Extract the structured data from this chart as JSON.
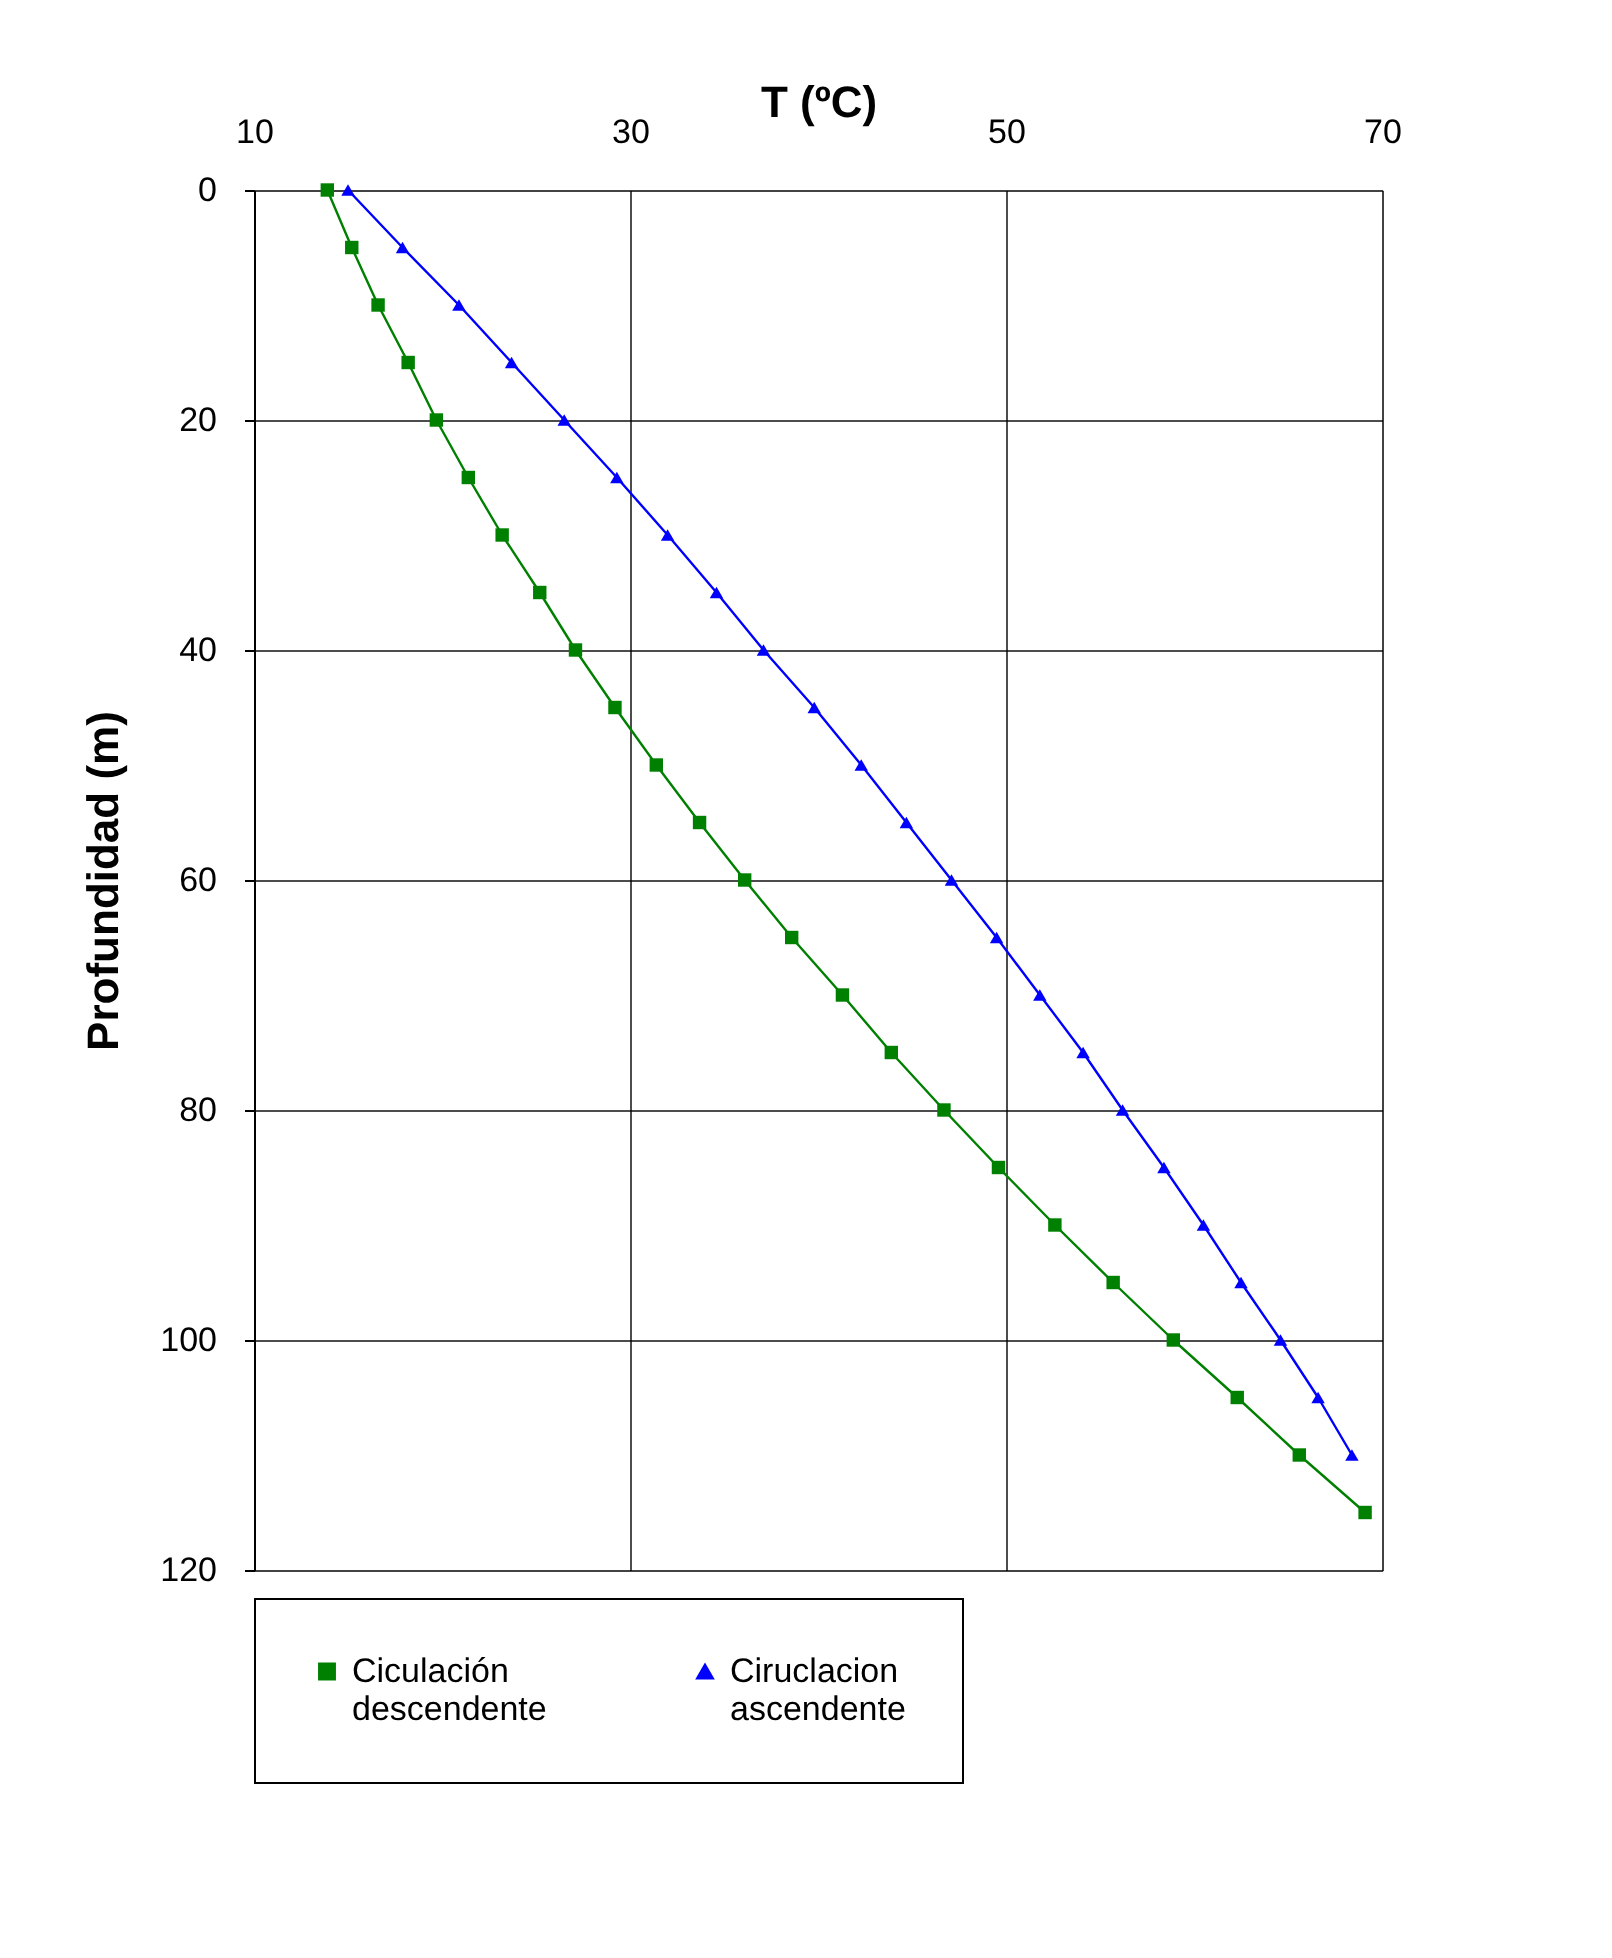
{
  "chart_data": {
    "type": "line",
    "xlabel": "T (ºC)",
    "ylabel": "Profundidad (m)",
    "xlim": [
      10,
      70
    ],
    "xticks": [
      10,
      30,
      50,
      70
    ],
    "ylim": [
      120,
      0
    ],
    "yticks": [
      0,
      20,
      40,
      60,
      80,
      100,
      120
    ],
    "grid": true,
    "legend": "bottom",
    "line_style": "solid",
    "series": [
      {
        "name": "Ciculación descendente",
        "color": "#008000",
        "marker": "square",
        "x": [
          13.9,
          15.2,
          16.6,
          18.2,
          19.7,
          21.4,
          23.2,
          25.2,
          27.1,
          29.2,
          31.4,
          33.7,
          36.1,
          38.6,
          41.3,
          43.9,
          46.7,
          49.6,
          52.6,
          55.7,
          58.9,
          62.3,
          65.6,
          69.1
        ],
        "values": [
          0,
          5,
          10,
          15,
          20,
          25,
          30,
          35,
          40,
          45,
          50,
          55,
          60,
          65,
          70,
          75,
          80,
          85,
          90,
          95,
          100,
          105,
          110,
          115
        ]
      },
      {
        "name": "Ciruclacion ascendente",
        "color": "#0000ff",
        "marker": "triangle",
        "x": [
          15.0,
          17.9,
          20.9,
          23.7,
          26.5,
          29.3,
          32.0,
          34.6,
          37.1,
          39.8,
          42.3,
          44.7,
          47.1,
          49.5,
          51.8,
          54.1,
          56.2,
          58.4,
          60.5,
          62.5,
          64.6,
          66.6,
          68.4
        ],
        "values": [
          0,
          5,
          10,
          15,
          20,
          25,
          30,
          35,
          40,
          45,
          50,
          55,
          60,
          65,
          70,
          75,
          80,
          85,
          90,
          95,
          100,
          105,
          110
        ]
      }
    ]
  }
}
